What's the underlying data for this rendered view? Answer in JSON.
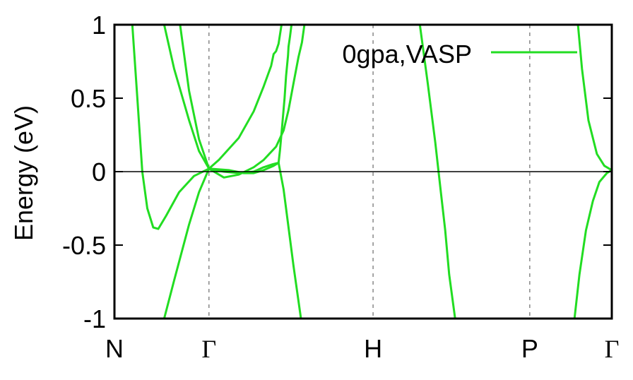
{
  "chart_data": {
    "type": "line",
    "title": "",
    "xlabel": "",
    "ylabel": "Energy (eV)",
    "ylim": [
      -1,
      1
    ],
    "xlim": [
      0,
      1
    ],
    "yticks": [
      "-1",
      "-0.5",
      "0",
      "0.5",
      "1"
    ],
    "ytick_values": [
      -1,
      -0.5,
      0,
      0.5,
      1
    ],
    "kpoints": [
      {
        "label": "N",
        "x": 0.0
      },
      {
        "label": "Γ",
        "x": 0.19
      },
      {
        "label": "H",
        "x": 0.52
      },
      {
        "label": "P",
        "x": 0.835
      },
      {
        "label": "Γ",
        "x": 1.0
      }
    ],
    "fermi_level": 0,
    "grid": "vertical dashed at high-symmetry points",
    "legend": {
      "label": "0gpa,VASP",
      "position": "top-right"
    },
    "color": "#22dd22",
    "series": [
      {
        "name": "0gpa,VASP",
        "bands": [
          [
            [
              0.036,
              1.0
            ],
            [
              0.046,
              0.5
            ],
            [
              0.056,
              0.0
            ],
            [
              0.066,
              -0.25
            ],
            [
              0.078,
              -0.38
            ],
            [
              0.088,
              -0.39
            ],
            [
              0.104,
              -0.3
            ],
            [
              0.13,
              -0.14
            ],
            [
              0.16,
              -0.03
            ],
            [
              0.19,
              0.02
            ],
            [
              0.23,
              0.01
            ],
            [
              0.26,
              -0.01
            ],
            [
              0.28,
              -0.01
            ],
            [
              0.3,
              0.01
            ],
            [
              0.32,
              0.04
            ],
            [
              0.325,
              0.05
            ],
            [
              0.33,
              0.06
            ],
            [
              0.333,
              0.15
            ],
            [
              0.337,
              0.3
            ],
            [
              0.342,
              0.5
            ],
            [
              0.345,
              0.65
            ],
            [
              0.349,
              0.79
            ],
            [
              0.35,
              0.85
            ],
            [
              0.353,
              0.92
            ],
            [
              0.356,
              1.0
            ]
          ],
          [
            [
              0.132,
              1.0
            ],
            [
              0.15,
              0.55
            ],
            [
              0.17,
              0.22
            ],
            [
              0.19,
              0.02
            ],
            [
              0.21,
              0.08
            ],
            [
              0.25,
              0.23
            ],
            [
              0.28,
              0.41
            ],
            [
              0.3,
              0.58
            ],
            [
              0.315,
              0.72
            ],
            [
              0.32,
              0.8
            ],
            [
              0.325,
              0.82
            ],
            [
              0.33,
              0.87
            ],
            [
              0.336,
              1.0
            ]
          ],
          [
            [
              0.1,
              1.0
            ],
            [
              0.12,
              0.7
            ],
            [
              0.15,
              0.35
            ],
            [
              0.17,
              0.14
            ],
            [
              0.19,
              0.02
            ],
            [
              0.22,
              -0.04
            ],
            [
              0.25,
              -0.02
            ],
            [
              0.28,
              0.03
            ],
            [
              0.3,
              0.08
            ],
            [
              0.325,
              0.17
            ],
            [
              0.34,
              0.28
            ],
            [
              0.35,
              0.42
            ],
            [
              0.36,
              0.6
            ],
            [
              0.37,
              0.78
            ],
            [
              0.377,
              0.88
            ],
            [
              0.382,
              1.0
            ]
          ],
          [
            [
              0.1,
              -1.0
            ],
            [
              0.12,
              -0.74
            ],
            [
              0.15,
              -0.36
            ],
            [
              0.17,
              -0.14
            ],
            [
              0.19,
              0.02
            ],
            [
              0.22,
              0.0
            ],
            [
              0.25,
              -0.01
            ],
            [
              0.28,
              0.0
            ],
            [
              0.3,
              0.03
            ],
            [
              0.318,
              0.05
            ],
            [
              0.33,
              0.06
            ],
            [
              0.34,
              -0.12
            ],
            [
              0.35,
              -0.38
            ],
            [
              0.36,
              -0.64
            ],
            [
              0.375,
              -1.0
            ]
          ],
          [
            [
              0.614,
              1.0
            ],
            [
              0.63,
              0.6
            ],
            [
              0.645,
              0.2
            ],
            [
              0.655,
              -0.1
            ],
            [
              0.665,
              -0.4
            ],
            [
              0.673,
              -0.7
            ],
            [
              0.685,
              -1.0
            ]
          ],
          [
            [
              0.932,
              1.0
            ],
            [
              0.94,
              0.7
            ],
            [
              0.953,
              0.35
            ],
            [
              0.97,
              0.12
            ],
            [
              0.985,
              0.04
            ],
            [
              1.0,
              0.01
            ]
          ],
          [
            [
              0.925,
              -1.0
            ],
            [
              0.935,
              -0.7
            ],
            [
              0.948,
              -0.4
            ],
            [
              0.962,
              -0.2
            ],
            [
              0.975,
              -0.07
            ],
            [
              0.99,
              -0.01
            ],
            [
              1.0,
              0.01
            ]
          ]
        ]
      }
    ]
  }
}
